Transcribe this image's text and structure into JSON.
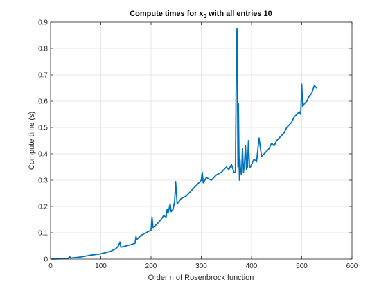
{
  "chart_data": {
    "type": "line",
    "title": "Compute times for x",
    "title_subscript": "0",
    "title_suffix": " with all entries 10",
    "xlabel": "Order n of Rosenbrock function",
    "ylabel": "Compute time (s)",
    "xlim": [
      0,
      600
    ],
    "ylim": [
      0,
      0.9
    ],
    "xticks": [
      0,
      100,
      200,
      300,
      400,
      500,
      600
    ],
    "yticks": [
      0,
      0.1,
      0.2,
      0.3,
      0.4,
      0.5,
      0.6,
      0.7,
      0.8,
      0.9
    ],
    "grid": true,
    "colors": {
      "line": "#0072BD",
      "grid": "#dfdfdf",
      "axis": "#262626"
    },
    "series": [
      {
        "x": [
          2,
          20,
          35,
          38,
          40,
          60,
          80,
          100,
          120,
          130,
          135,
          138,
          140,
          150,
          160,
          168,
          170,
          172,
          180,
          190,
          200,
          202,
          204,
          210,
          220,
          225,
          230,
          232,
          234,
          238,
          240,
          244,
          247,
          249,
          252,
          260,
          270,
          275,
          280,
          285,
          290,
          300,
          302,
          304,
          310,
          320,
          330,
          340,
          345,
          350,
          355,
          360,
          365,
          368,
          370,
          371,
          372,
          373,
          374,
          375,
          376,
          377,
          378,
          380,
          382,
          384,
          386,
          388,
          390,
          392,
          394,
          396,
          398,
          400,
          405,
          410,
          415,
          420,
          425,
          430,
          435,
          440,
          445,
          450,
          455,
          460,
          465,
          470,
          475,
          480,
          485,
          490,
          495,
          498,
          500,
          502,
          505,
          510,
          515,
          520,
          525,
          530
        ],
        "y": [
          0.0,
          0.001,
          0.002,
          0.01,
          0.004,
          0.008,
          0.015,
          0.02,
          0.03,
          0.04,
          0.05,
          0.065,
          0.045,
          0.05,
          0.055,
          0.06,
          0.085,
          0.075,
          0.09,
          0.1,
          0.11,
          0.16,
          0.12,
          0.13,
          0.15,
          0.165,
          0.16,
          0.19,
          0.175,
          0.21,
          0.18,
          0.19,
          0.22,
          0.295,
          0.21,
          0.23,
          0.24,
          0.25,
          0.26,
          0.27,
          0.28,
          0.3,
          0.33,
          0.29,
          0.31,
          0.3,
          0.32,
          0.33,
          0.34,
          0.35,
          0.34,
          0.36,
          0.33,
          0.33,
          0.8,
          0.875,
          0.7,
          0.35,
          0.59,
          0.4,
          0.3,
          0.38,
          0.34,
          0.32,
          0.42,
          0.33,
          0.36,
          0.43,
          0.34,
          0.35,
          0.45,
          0.35,
          0.35,
          0.36,
          0.38,
          0.37,
          0.46,
          0.39,
          0.4,
          0.41,
          0.42,
          0.44,
          0.43,
          0.45,
          0.46,
          0.47,
          0.48,
          0.5,
          0.51,
          0.52,
          0.54,
          0.55,
          0.56,
          0.55,
          0.665,
          0.58,
          0.59,
          0.6,
          0.62,
          0.63,
          0.66,
          0.65
        ]
      }
    ]
  }
}
